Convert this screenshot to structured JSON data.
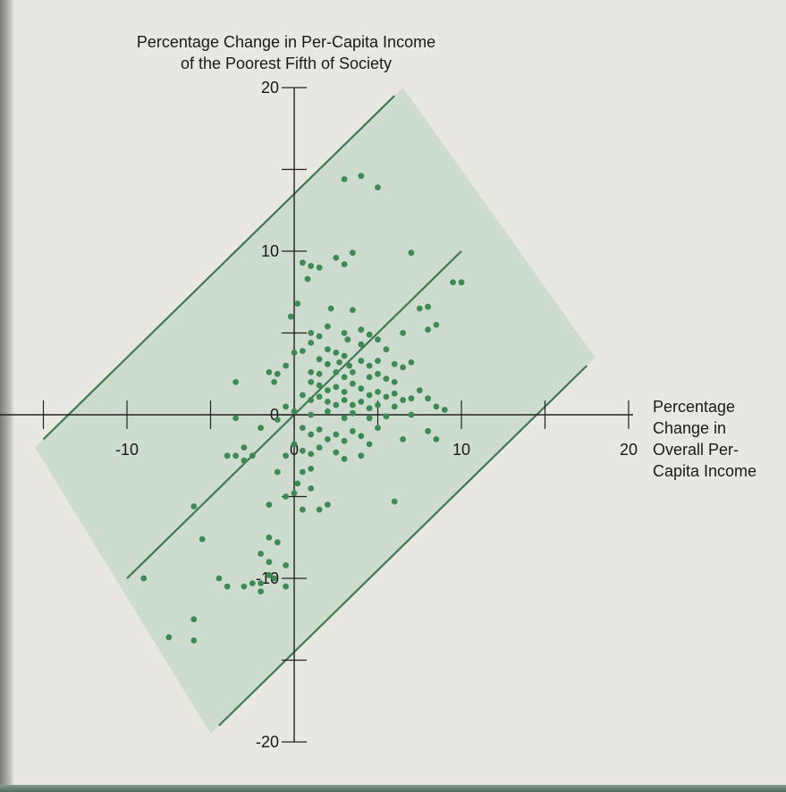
{
  "chart_data": {
    "type": "scatter",
    "title": "",
    "ylabel_lines": [
      "Percentage Change in Per-Capita Income",
      "of the Poorest Fifth of Society"
    ],
    "xlabel_lines": [
      "Percentage",
      "Change in",
      "Overall Per-",
      "Capita Income"
    ],
    "xlim": [
      -20,
      20
    ],
    "ylim": [
      -20,
      20
    ],
    "x_ticks": [
      -15,
      -10,
      -5,
      0,
      5,
      10,
      15,
      20
    ],
    "y_ticks": [
      -20,
      -15,
      -10,
      -5,
      0,
      5,
      10,
      15,
      20
    ],
    "x_tick_labels": [
      {
        "value": -10,
        "text": "-10"
      },
      {
        "value": 0,
        "text": "0"
      },
      {
        "value": 10,
        "text": "10"
      },
      {
        "value": 20,
        "text": "20"
      }
    ],
    "y_tick_labels": [
      {
        "value": 20,
        "text": "20"
      },
      {
        "value": 10,
        "text": "10"
      },
      {
        "value": 0,
        "text": "0"
      },
      {
        "value": -10,
        "text": "-10"
      },
      {
        "value": -20,
        "text": "-20"
      }
    ],
    "grid": false,
    "colors": {
      "band_fill": "#c9d9cb",
      "band_line": "#3f7a52",
      "points": "#3e8a54",
      "axis": "#222222"
    },
    "band": {
      "center_line": {
        "slope": 1,
        "intercept": 0,
        "x_range": [
          -10,
          10
        ]
      },
      "upper_line": {
        "slope": 1,
        "intercept": 13.5,
        "x_range": [
          -15,
          6
        ]
      },
      "lower_line": {
        "slope": 1,
        "intercept": -14.5,
        "x_range": [
          -4.5,
          17.5
        ]
      }
    },
    "points": [
      [
        3.0,
        14.4
      ],
      [
        4.0,
        14.6
      ],
      [
        5.0,
        13.9
      ],
      [
        7.0,
        9.9
      ],
      [
        2.5,
        9.6
      ],
      [
        3.5,
        9.9
      ],
      [
        3.0,
        9.2
      ],
      [
        0.5,
        9.3
      ],
      [
        1.0,
        9.1
      ],
      [
        1.5,
        9.0
      ],
      [
        0.8,
        8.3
      ],
      [
        0.2,
        6.8
      ],
      [
        -0.2,
        6.0
      ],
      [
        2.2,
        6.5
      ],
      [
        2.0,
        5.4
      ],
      [
        3.5,
        6.4
      ],
      [
        10.0,
        8.1
      ],
      [
        9.5,
        8.1
      ],
      [
        7.5,
        6.5
      ],
      [
        8.0,
        6.6
      ],
      [
        8.5,
        5.5
      ],
      [
        8.0,
        5.2
      ],
      [
        6.5,
        5.0
      ],
      [
        1.0,
        5.0
      ],
      [
        1.5,
        4.8
      ],
      [
        1.0,
        4.4
      ],
      [
        0.5,
        3.9
      ],
      [
        3.0,
        5.0
      ],
      [
        3.2,
        4.6
      ],
      [
        4.0,
        5.2
      ],
      [
        4.5,
        4.9
      ],
      [
        4.0,
        4.3
      ],
      [
        5.0,
        4.6
      ],
      [
        5.5,
        4.0
      ],
      [
        2.0,
        4.0
      ],
      [
        2.5,
        3.8
      ],
      [
        3.0,
        3.6
      ],
      [
        1.5,
        3.4
      ],
      [
        2.0,
        3.1
      ],
      [
        2.7,
        3.2
      ],
      [
        3.3,
        3.0
      ],
      [
        4.0,
        3.3
      ],
      [
        4.5,
        3.0
      ],
      [
        5.0,
        3.3
      ],
      [
        6.0,
        3.1
      ],
      [
        6.5,
        2.9
      ],
      [
        7.0,
        3.2
      ],
      [
        1.0,
        2.6
      ],
      [
        1.5,
        2.5
      ],
      [
        2.5,
        2.6
      ],
      [
        3.0,
        2.3
      ],
      [
        3.5,
        2.6
      ],
      [
        4.5,
        2.3
      ],
      [
        5.0,
        2.5
      ],
      [
        5.5,
        2.2
      ],
      [
        6.0,
        2.0
      ],
      [
        -0.5,
        3.0
      ],
      [
        0.0,
        3.8
      ],
      [
        -1.0,
        2.5
      ],
      [
        -1.5,
        2.6
      ],
      [
        -1.2,
        2.0
      ],
      [
        1.0,
        2.0
      ],
      [
        1.5,
        1.8
      ],
      [
        2.0,
        1.5
      ],
      [
        2.5,
        1.7
      ],
      [
        3.0,
        1.4
      ],
      [
        3.5,
        1.9
      ],
      [
        4.0,
        1.6
      ],
      [
        4.5,
        1.2
      ],
      [
        5.0,
        1.4
      ],
      [
        5.5,
        1.1
      ],
      [
        6.0,
        1.3
      ],
      [
        7.0,
        1.0
      ],
      [
        7.5,
        1.5
      ],
      [
        8.0,
        1.0
      ],
      [
        0.5,
        1.2
      ],
      [
        1.0,
        0.9
      ],
      [
        1.5,
        1.1
      ],
      [
        2.0,
        0.8
      ],
      [
        2.5,
        0.6
      ],
      [
        3.0,
        0.9
      ],
      [
        3.5,
        0.6
      ],
      [
        4.0,
        0.8
      ],
      [
        4.5,
        0.4
      ],
      [
        5.0,
        0.6
      ],
      [
        6.0,
        0.5
      ],
      [
        6.5,
        0.9
      ],
      [
        0.0,
        0.2
      ],
      [
        -0.5,
        0.5
      ],
      [
        1.0,
        0.0
      ],
      [
        2.0,
        0.2
      ],
      [
        3.0,
        -0.2
      ],
      [
        3.5,
        0.1
      ],
      [
        4.5,
        -0.2
      ],
      [
        5.5,
        -0.1
      ],
      [
        8.5,
        0.5
      ],
      [
        9.0,
        0.3
      ],
      [
        7.0,
        0.0
      ],
      [
        -3.5,
        2.0
      ],
      [
        -1.0,
        -0.3
      ],
      [
        -3.5,
        -0.2
      ],
      [
        -2.0,
        -0.8
      ],
      [
        0.5,
        -0.8
      ],
      [
        1.0,
        -1.2
      ],
      [
        1.5,
        -0.9
      ],
      [
        2.0,
        -1.5
      ],
      [
        2.5,
        -1.2
      ],
      [
        3.0,
        -1.6
      ],
      [
        3.5,
        -1.0
      ],
      [
        4.0,
        -1.3
      ],
      [
        4.5,
        -1.8
      ],
      [
        5.0,
        -0.8
      ],
      [
        6.5,
        -1.5
      ],
      [
        8.0,
        -1.0
      ],
      [
        8.5,
        -1.5
      ],
      [
        0.0,
        -1.8
      ],
      [
        0.5,
        -2.2
      ],
      [
        1.0,
        -2.4
      ],
      [
        1.5,
        -2.0
      ],
      [
        2.5,
        -2.3
      ],
      [
        3.0,
        -2.7
      ],
      [
        4.0,
        -2.5
      ],
      [
        -0.5,
        -2.5
      ],
      [
        -3.0,
        -2.0
      ],
      [
        -3.5,
        -2.5
      ],
      [
        -3.0,
        -2.8
      ],
      [
        -4.0,
        -2.5
      ],
      [
        -2.5,
        -2.5
      ],
      [
        -1.0,
        -3.5
      ],
      [
        0.5,
        -3.5
      ],
      [
        1.0,
        -3.3
      ],
      [
        0.2,
        -4.2
      ],
      [
        1.0,
        -4.5
      ],
      [
        -0.5,
        -5.0
      ],
      [
        0.0,
        -4.8
      ],
      [
        -1.5,
        -5.5
      ],
      [
        0.5,
        -5.8
      ],
      [
        1.5,
        -5.8
      ],
      [
        2.0,
        -5.5
      ],
      [
        6.0,
        -5.3
      ],
      [
        -6.0,
        -5.6
      ],
      [
        -5.5,
        -7.6
      ],
      [
        -1.5,
        -7.5
      ],
      [
        -1.0,
        -7.8
      ],
      [
        -2.0,
        -8.5
      ],
      [
        -1.5,
        -9.0
      ],
      [
        -0.5,
        -9.2
      ],
      [
        -1.5,
        -9.8
      ],
      [
        -2.0,
        -10.3
      ],
      [
        -1.2,
        -10.0
      ],
      [
        -0.5,
        -10.5
      ],
      [
        -2.0,
        -10.8
      ],
      [
        -2.5,
        -10.3
      ],
      [
        -3.0,
        -10.5
      ],
      [
        -4.5,
        -10.0
      ],
      [
        -4.0,
        -10.5
      ],
      [
        -9.0,
        -10.0
      ],
      [
        -6.0,
        -12.5
      ],
      [
        -6.0,
        -13.8
      ],
      [
        -7.5,
        -13.6
      ]
    ]
  }
}
